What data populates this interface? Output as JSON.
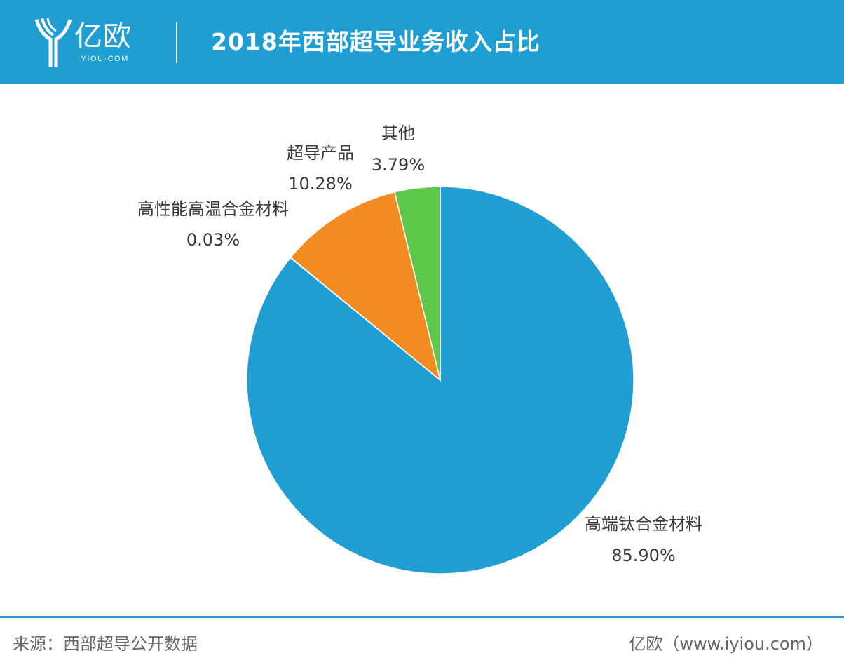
{
  "header": {
    "logo_text": "亿欧",
    "logo_domain": "IYIOU·COM",
    "title": "2018年西部超导业务收入占比"
  },
  "colors": {
    "header_bg": "#1e9ed3",
    "text": "#3a3a3a",
    "footer_text": "#666666"
  },
  "chart_data": {
    "type": "pie",
    "title": "2018年西部超导业务收入占比",
    "start_angle_deg": 0,
    "direction": "clockwise",
    "slices": [
      {
        "label": "高端钛合金材料",
        "value": 85.9,
        "display": "85.90%",
        "color": "#1e9ed3"
      },
      {
        "label": "高性能高温合金材料",
        "value": 0.03,
        "display": "0.03%",
        "color": "#1e9ed3"
      },
      {
        "label": "超导产品",
        "value": 10.28,
        "display": "10.28%",
        "color": "#f28c22"
      },
      {
        "label": "其他",
        "value": 3.79,
        "display": "3.79%",
        "color": "#5ec84a"
      }
    ]
  },
  "footer": {
    "source": "来源：西部超导公开数据",
    "brand": "亿欧（www.iyiou.com）"
  }
}
